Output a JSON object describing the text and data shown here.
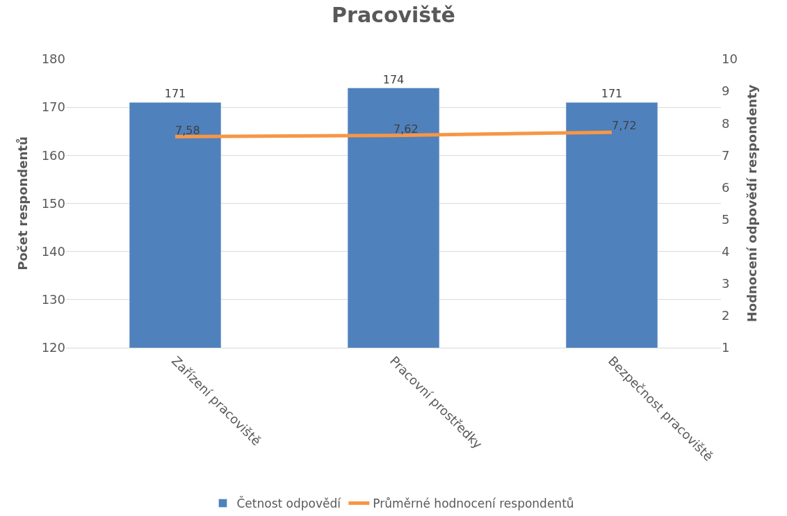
{
  "chart_data": {
    "type": "bar",
    "title": "Pracoviště",
    "ylabel": "Počet respondentů",
    "y2label": "Hodnocení odpovědí respondenty",
    "categories": [
      "Zařízení pracoviště",
      "Pracovní prostředky",
      "Bezpečnost pracoviště"
    ],
    "series": [
      {
        "name": "Četnost odpovědí",
        "color": "#4f81bd",
        "values": [
          171,
          174,
          171
        ],
        "value_labels": [
          "171",
          "174",
          "171"
        ]
      },
      {
        "name": "Průměrné hodnocení respondentů",
        "type": "line",
        "axis": "y2",
        "color": "#f79646",
        "values": [
          7.58,
          7.62,
          7.72
        ],
        "value_labels": [
          "7,58",
          "7,62",
          "7,72"
        ],
        "marker": "none",
        "line_style": "solid"
      }
    ],
    "ylim": [
      120,
      180
    ],
    "yticks": [
      120,
      130,
      140,
      150,
      160,
      170,
      180
    ],
    "y2lim": [
      1,
      10
    ],
    "y2ticks": [
      1,
      2,
      3,
      4,
      5,
      6,
      7,
      8,
      9,
      10
    ],
    "grid": "y",
    "legend": "bottom"
  }
}
